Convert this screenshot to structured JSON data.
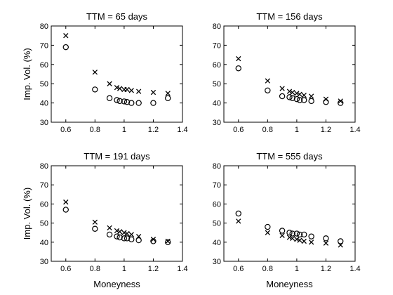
{
  "chart_data": [
    {
      "type": "scatter",
      "title": "TTM = 65 days",
      "xlabel": "",
      "ylabel": "Imp. Vol. (%)",
      "xlim": [
        0.5,
        1.4
      ],
      "ylim": [
        30,
        80
      ],
      "xticks": [
        0.6,
        0.8,
        1,
        1.2,
        1.4
      ],
      "yticks": [
        30,
        40,
        50,
        60,
        70,
        80
      ],
      "series": [
        {
          "marker": "x",
          "x": [
            0.6,
            0.8,
            0.9,
            0.95,
            0.97,
            1.0,
            1.02,
            1.05,
            1.1,
            1.2,
            1.3
          ],
          "y": [
            75,
            56,
            50,
            48,
            47.5,
            47,
            47,
            46.5,
            46,
            45.5,
            45
          ]
        },
        {
          "marker": "o",
          "x": [
            0.6,
            0.8,
            0.9,
            0.95,
            0.97,
            1.0,
            1.02,
            1.05,
            1.1,
            1.2,
            1.3
          ],
          "y": [
            69,
            47,
            42.5,
            41.5,
            41,
            40.8,
            40.5,
            40,
            40,
            40,
            42.5
          ]
        }
      ]
    },
    {
      "type": "scatter",
      "title": "TTM = 156 days",
      "xlabel": "",
      "ylabel": "",
      "xlim": [
        0.5,
        1.4
      ],
      "ylim": [
        30,
        80
      ],
      "xticks": [
        0.6,
        0.8,
        1,
        1.2,
        1.4
      ],
      "yticks": [
        30,
        40,
        50,
        60,
        70,
        80
      ],
      "series": [
        {
          "marker": "x",
          "x": [
            0.6,
            0.8,
            0.9,
            0.95,
            0.97,
            1.0,
            1.02,
            1.05,
            1.1,
            1.2,
            1.3
          ],
          "y": [
            63,
            51.5,
            47.5,
            46,
            45.5,
            45,
            44.5,
            44,
            43.5,
            42,
            41
          ]
        },
        {
          "marker": "o",
          "x": [
            0.6,
            0.8,
            0.9,
            0.95,
            0.97,
            1.0,
            1.02,
            1.05,
            1.1,
            1.2,
            1.3
          ],
          "y": [
            58,
            46.5,
            43.5,
            43,
            42.5,
            42,
            41.5,
            41.5,
            41,
            40.5,
            40
          ]
        }
      ]
    },
    {
      "type": "scatter",
      "title": "TTM = 191 days",
      "xlabel": "Moneyness",
      "ylabel": "Imp. Vol. (%)",
      "xlim": [
        0.5,
        1.4
      ],
      "ylim": [
        30,
        80
      ],
      "xticks": [
        0.6,
        0.8,
        1,
        1.2,
        1.4
      ],
      "yticks": [
        30,
        40,
        50,
        60,
        70,
        80
      ],
      "series": [
        {
          "marker": "x",
          "x": [
            0.6,
            0.8,
            0.9,
            0.95,
            0.97,
            1.0,
            1.02,
            1.05,
            1.1,
            1.2,
            1.3
          ],
          "y": [
            61,
            50.5,
            47.5,
            46,
            45.5,
            45,
            44.5,
            44,
            43,
            41.5,
            40.5
          ]
        },
        {
          "marker": "o",
          "x": [
            0.6,
            0.8,
            0.9,
            0.95,
            0.97,
            1.0,
            1.02,
            1.05,
            1.1,
            1.2,
            1.3
          ],
          "y": [
            57,
            47,
            44,
            43,
            42.5,
            42,
            42,
            41.5,
            41,
            40.5,
            40
          ]
        }
      ]
    },
    {
      "type": "scatter",
      "title": "TTM = 555 days",
      "xlabel": "Moneyness",
      "ylabel": "",
      "xlim": [
        0.5,
        1.4
      ],
      "ylim": [
        30,
        80
      ],
      "xticks": [
        0.6,
        0.8,
        1,
        1.2,
        1.4
      ],
      "yticks": [
        30,
        40,
        50,
        60,
        70,
        80
      ],
      "series": [
        {
          "marker": "x",
          "x": [
            0.6,
            0.8,
            0.9,
            0.95,
            0.97,
            1.0,
            1.02,
            1.05,
            1.1,
            1.2,
            1.3
          ],
          "y": [
            51,
            45,
            43.5,
            42.5,
            42,
            41.5,
            41,
            40.5,
            40,
            39.5,
            38.5
          ]
        },
        {
          "marker": "o",
          "x": [
            0.6,
            0.8,
            0.9,
            0.95,
            0.97,
            1.0,
            1.02,
            1.05,
            1.1,
            1.2,
            1.3
          ],
          "y": [
            55,
            48,
            46,
            45,
            44.5,
            44.5,
            44,
            44,
            43,
            42,
            40.5
          ]
        }
      ]
    }
  ]
}
